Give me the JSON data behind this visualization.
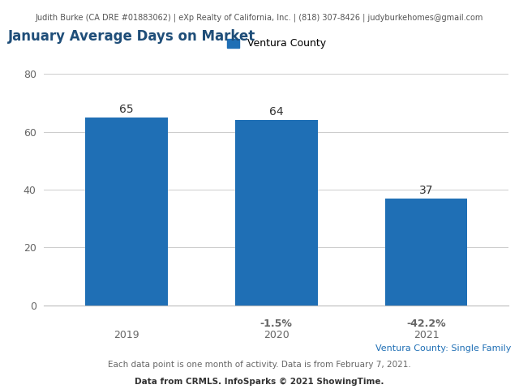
{
  "header_text": "Judith Burke (CA DRE #01883062) | eXp Realty of California, Inc. | (818) 307-8426 | judyburkehomes@gmail.com",
  "title": "January Average Days on Market",
  "legend_label": "Ventura County",
  "legend_color": "#1F6FB5",
  "categories": [
    "2019",
    "2020",
    "2021"
  ],
  "values": [
    65,
    64,
    37
  ],
  "bar_color": "#1F6FB5",
  "pct_changes": [
    "",
    "-1.5%",
    "-42.2%"
  ],
  "ylim": [
    0,
    80
  ],
  "yticks": [
    0,
    20,
    40,
    60,
    80
  ],
  "bg_color": "#ffffff",
  "plot_bg_color": "#ffffff",
  "grid_color": "#cccccc",
  "subtitle_right": "Ventura County: Single Family",
  "subtitle_right_color": "#1F6FB5",
  "footnote1": "Each data point is one month of activity. Data is from February 7, 2021.",
  "footnote2": "Data from CRMLS. InfoSparks © 2021 ShowingTime.",
  "title_color": "#1F4E79",
  "header_color": "#555555",
  "footnote_color": "#666666",
  "pct_color": "#666666",
  "value_label_color": "#333333",
  "tick_color": "#666666"
}
